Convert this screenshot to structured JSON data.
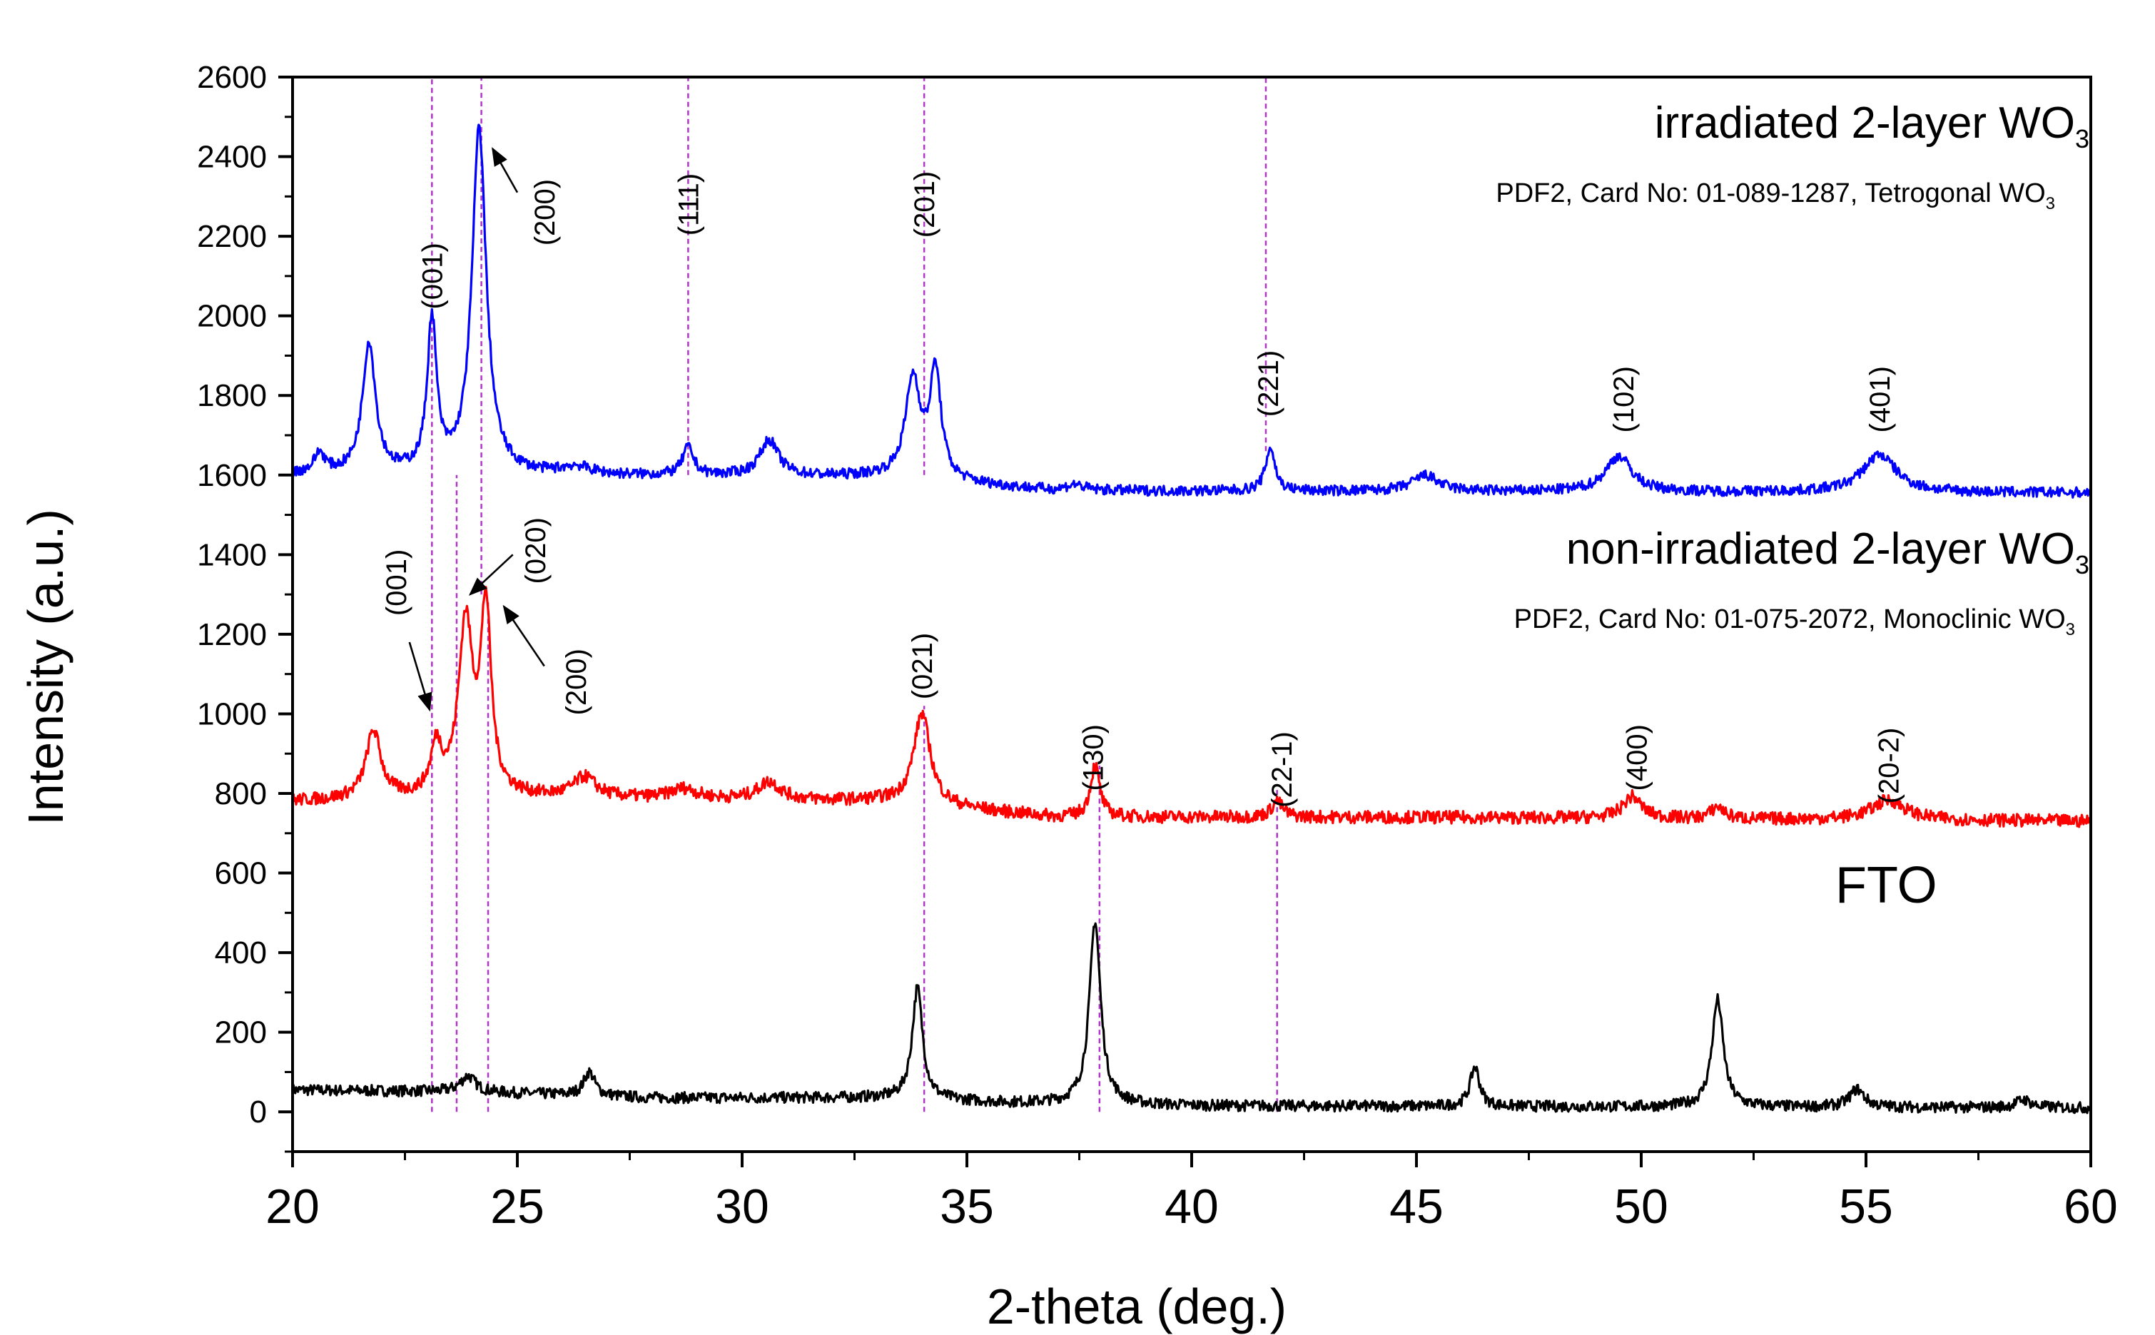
{
  "chart_data": {
    "type": "line",
    "xlabel": "2-theta (deg.)",
    "ylabel": "Intensity (a.u.)",
    "xlim": [
      20,
      60
    ],
    "ylim": [
      -100,
      2600
    ],
    "xticks": [
      20,
      25,
      30,
      35,
      40,
      45,
      50,
      55,
      60
    ],
    "xtick_labels": [
      "20",
      "25",
      "30",
      "35",
      "40",
      "45",
      "50",
      "55",
      "60"
    ],
    "yticks": [
      0,
      200,
      400,
      600,
      800,
      1000,
      1200,
      1400,
      1600,
      1800,
      2000,
      2200,
      2400,
      2600
    ],
    "ytick_labels": [
      "0",
      "200",
      "400",
      "600",
      "800",
      "1000",
      "1200",
      "1400",
      "1600",
      "1800",
      "2000",
      "2200",
      "2400",
      "2600"
    ],
    "series": [
      {
        "name": "FTO",
        "color": "#000000",
        "baseline": [
          [
            20,
            55
          ],
          [
            24,
            50
          ],
          [
            28,
            35
          ],
          [
            33,
            35
          ],
          [
            36,
            22
          ],
          [
            40,
            15
          ],
          [
            60,
            10
          ]
        ],
        "peaks": [
          [
            23.9,
            40,
            0.4
          ],
          [
            26.6,
            60,
            0.3
          ],
          [
            33.9,
            280,
            0.28
          ],
          [
            37.85,
            460,
            0.3
          ],
          [
            46.3,
            100,
            0.25
          ],
          [
            51.7,
            270,
            0.3
          ],
          [
            54.8,
            45,
            0.4
          ],
          [
            58.5,
            20,
            0.4
          ]
        ],
        "noise": 14
      },
      {
        "name": "non-irradiated 2-layer WO3",
        "color": "#ff0000",
        "baseline": [
          [
            20,
            780
          ],
          [
            25,
            790
          ],
          [
            33,
            780
          ],
          [
            37,
            740
          ],
          [
            45,
            740
          ],
          [
            60,
            730
          ]
        ],
        "peaks": [
          [
            21.8,
            170,
            0.4
          ],
          [
            23.2,
            120,
            0.3
          ],
          [
            23.85,
            430,
            0.38
          ],
          [
            24.3,
            460,
            0.28
          ],
          [
            26.5,
            50,
            0.6
          ],
          [
            28.7,
            25,
            0.7
          ],
          [
            30.6,
            45,
            0.6
          ],
          [
            34.0,
            230,
            0.45
          ],
          [
            37.85,
            130,
            0.25
          ],
          [
            41.9,
            40,
            0.3
          ],
          [
            49.8,
            55,
            0.5
          ],
          [
            51.7,
            30,
            0.35
          ],
          [
            55.5,
            50,
            0.9
          ]
        ],
        "noise": 16
      },
      {
        "name": "irradiated 2-layer WO3",
        "color": "#0000ff",
        "baseline": [
          [
            20,
            1600
          ],
          [
            33,
            1595
          ],
          [
            37,
            1560
          ],
          [
            60,
            1555
          ]
        ],
        "peaks": [
          [
            20.6,
            50,
            0.3
          ],
          [
            21.7,
            330,
            0.35
          ],
          [
            23.1,
            380,
            0.25
          ],
          [
            24.15,
            870,
            0.38
          ],
          [
            26.3,
            20,
            0.8
          ],
          [
            28.8,
            70,
            0.3
          ],
          [
            30.6,
            90,
            0.5
          ],
          [
            33.8,
            250,
            0.4
          ],
          [
            34.3,
            270,
            0.3
          ],
          [
            37.4,
            15,
            0.5
          ],
          [
            41.75,
            110,
            0.25
          ],
          [
            45.2,
            40,
            0.7
          ],
          [
            49.5,
            90,
            0.7
          ],
          [
            55.3,
            95,
            0.9
          ]
        ],
        "noise": 13
      }
    ],
    "reference_lines": [
      {
        "x": 23.1,
        "from": 0,
        "to": 2600
      },
      {
        "x": 23.65,
        "from": 0,
        "to": 1600
      },
      {
        "x": 24.2,
        "from": 1300,
        "to": 2600
      },
      {
        "x": 24.35,
        "from": 0,
        "to": 1280
      },
      {
        "x": 28.8,
        "from": 1600,
        "to": 2600
      },
      {
        "x": 34.05,
        "from": 1600,
        "to": 2600
      },
      {
        "x": 34.05,
        "from": 0,
        "to": 1020
      },
      {
        "x": 37.95,
        "from": 0,
        "to": 870
      },
      {
        "x": 41.65,
        "from": 1660,
        "to": 2600
      },
      {
        "x": 41.9,
        "from": 0,
        "to": 810
      }
    ],
    "annotations": {
      "irradiated_title": "irradiated 2-layer WO",
      "irradiated_title_sub": "3",
      "irradiated_card": "PDF2, Card No: 01-089-1287, Tetrogonal WO",
      "irradiated_card_sub": "3",
      "nonirradiated_title": "non-irradiated 2-layer WO",
      "nonirradiated_title_sub": "3",
      "nonirradiated_card": "PDF2, Card No: 01-075-2072, Monoclinic WO",
      "nonirradiated_card_sub": "3",
      "fto": "FTO",
      "tetragonal_peaks": [
        {
          "label": "(001)",
          "x": 23.1,
          "y": 2100
        },
        {
          "label": "(200)",
          "x": 25.6,
          "y": 2260
        },
        {
          "label": "(111)",
          "x": 28.8,
          "y": 2280
        },
        {
          "label": "(201)",
          "x": 34.05,
          "y": 2280
        },
        {
          "label": "(221)",
          "x": 41.7,
          "y": 1830
        },
        {
          "label": "(102)",
          "x": 49.6,
          "y": 1790
        },
        {
          "label": "(401)",
          "x": 55.3,
          "y": 1790
        }
      ],
      "monoclinic_peaks": [
        {
          "label": "(001)",
          "x": 22.3,
          "y": 1330
        },
        {
          "label": "(020)",
          "x": 25.4,
          "y": 1410
        },
        {
          "label": "(200)",
          "x": 26.3,
          "y": 1080
        },
        {
          "label": "(021)",
          "x": 34.0,
          "y": 1120
        },
        {
          "label": "(130)",
          "x": 37.8,
          "y": 890
        },
        {
          "label": "(22-1)",
          "x": 42.0,
          "y": 860
        },
        {
          "label": "(400)",
          "x": 49.9,
          "y": 890
        },
        {
          "label": "(20-2)",
          "x": 55.5,
          "y": 870
        }
      ]
    }
  }
}
